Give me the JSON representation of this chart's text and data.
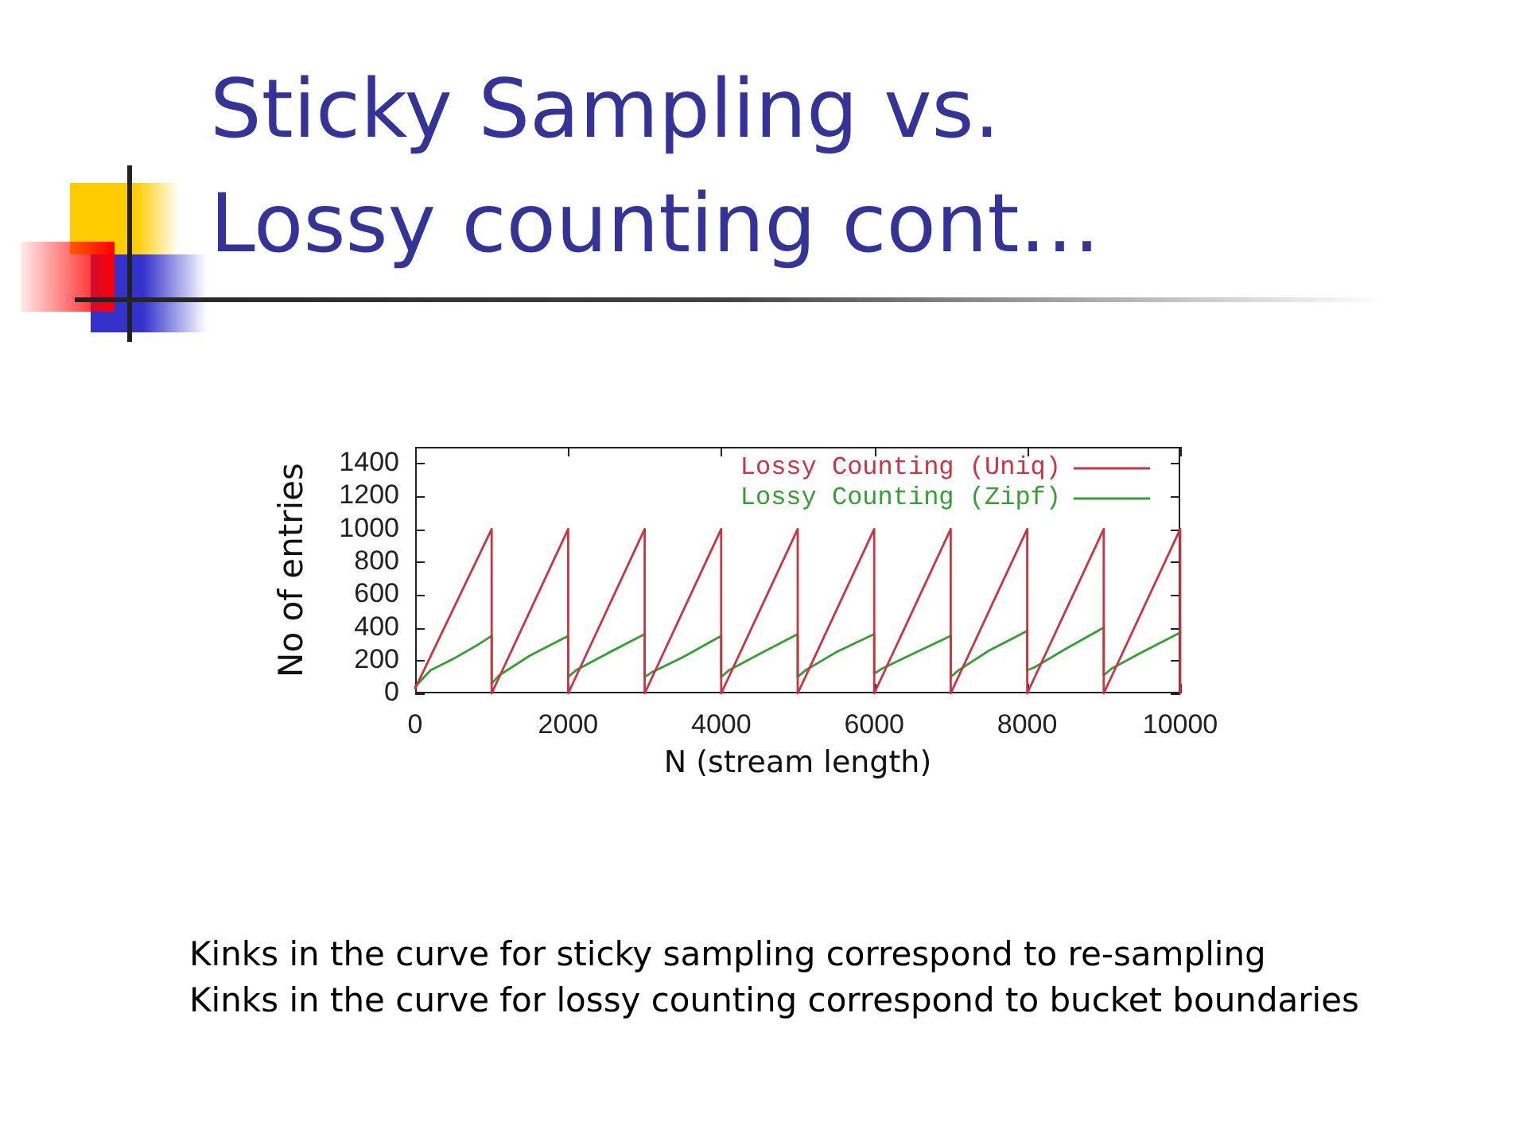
{
  "chart_data": {
    "type": "line",
    "title": "Sticky Sampling vs.\nLossy counting cont…",
    "xlabel": "N (stream length)",
    "ylabel": "No of entries",
    "annotations": [
      "Kinks in the curve for sticky sampling correspond to re-sampling",
      "Kinks in the curve for lossy counting correspond to bucket boundaries"
    ],
    "xlim": [
      0,
      10000
    ],
    "ylim": [
      0,
      1500
    ],
    "xticks": [
      0,
      2000,
      4000,
      6000,
      8000,
      10000
    ],
    "yticks": [
      0,
      200,
      400,
      600,
      800,
      1000,
      1200,
      1400
    ],
    "grid": false,
    "legend": "top right",
    "marker": "none",
    "line_style": "solid",
    "series": [
      {
        "name": "Lossy Counting (Uniq)",
        "color": "#cc3344",
        "x": [
          0,
          1000,
          1000,
          2000,
          2000,
          3000,
          3000,
          4000,
          4000,
          5000,
          5000,
          6000,
          6000,
          7000,
          7000,
          8000,
          8000,
          9000,
          9000,
          10000,
          10000
        ],
        "values": [
          30,
          1000,
          0,
          1000,
          0,
          1000,
          0,
          1000,
          0,
          1000,
          0,
          1000,
          0,
          1000,
          0,
          1000,
          0,
          1000,
          0,
          1000,
          0
        ]
      },
      {
        "name": "Lossy Counting (Zipf)",
        "color": "#33a033",
        "x": [
          0,
          200,
          500,
          800,
          1000,
          1000,
          1100,
          1500,
          2000,
          2000,
          2100,
          2500,
          3000,
          3000,
          3100,
          3500,
          4000,
          4000,
          4100,
          4500,
          5000,
          5000,
          5100,
          5500,
          6000,
          6000,
          6100,
          6500,
          7000,
          7000,
          7100,
          7500,
          8000,
          8000,
          8100,
          8500,
          9000,
          9000,
          9100,
          9500,
          10000
        ],
        "values": [
          40,
          140,
          210,
          290,
          350,
          60,
          110,
          230,
          350,
          100,
          140,
          240,
          360,
          100,
          130,
          220,
          350,
          100,
          140,
          240,
          360,
          100,
          140,
          250,
          360,
          120,
          150,
          240,
          350,
          100,
          140,
          260,
          380,
          140,
          160,
          270,
          400,
          110,
          150,
          250,
          370
        ]
      }
    ]
  }
}
